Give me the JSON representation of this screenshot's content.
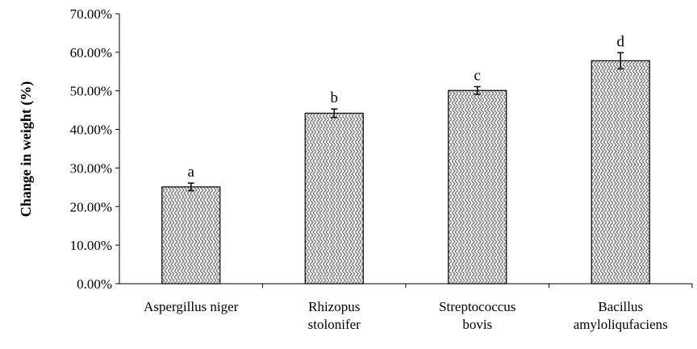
{
  "chart_data": {
    "type": "bar",
    "y_label": "Change in weight (%)",
    "categories": [
      "Aspergillus niger",
      "Rhizopus\nstolonifer",
      "Streptococcus\nbovis",
      "Bacillus\namyloliqufaciens"
    ],
    "values": [
      25.1,
      44.2,
      50.1,
      57.8
    ],
    "errors": [
      1.0,
      1.1,
      1.0,
      2.1
    ],
    "annotations": [
      "a",
      "b",
      "c",
      "d"
    ],
    "color": "#7a7a7a",
    "ylim": [
      0,
      70
    ],
    "yticks": [
      {
        "value": 0,
        "label": "0.00%"
      },
      {
        "value": 10,
        "label": "10.00%"
      },
      {
        "value": 20,
        "label": "20.00%"
      },
      {
        "value": 30,
        "label": "30.00%"
      },
      {
        "value": 40,
        "label": "40.00%"
      },
      {
        "value": 50,
        "label": "50.00%"
      },
      {
        "value": 60,
        "label": "60.00%"
      },
      {
        "value": 70,
        "label": "70.00%"
      }
    ]
  }
}
